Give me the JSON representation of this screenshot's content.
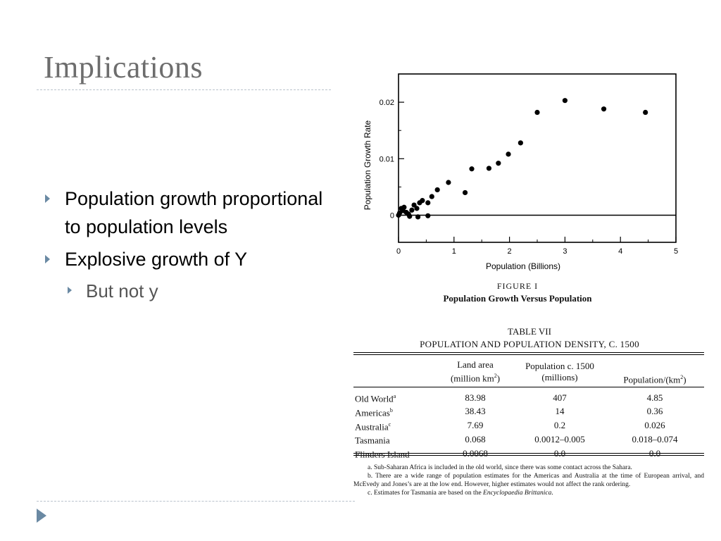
{
  "slide": {
    "title": "Implications",
    "bullets": [
      "Population growth proportional to population levels",
      "Explosive growth of Y"
    ],
    "subbullets": [
      "But not y"
    ],
    "accent_color": "#6a89a3"
  },
  "figure": {
    "number": "FIGURE I",
    "title": "Population Growth Versus Population"
  },
  "chart_data": {
    "type": "scatter",
    "xlabel": "Population (Billions)",
    "ylabel": "Population Growth Rate",
    "xlim": [
      0,
      5
    ],
    "ylim": [
      -0.0048,
      0.025
    ],
    "x_ticks": [
      0,
      1,
      2,
      3,
      4,
      5
    ],
    "y_ticks": [
      0,
      0.01,
      0.02
    ],
    "y_tick_labels": [
      "0",
      "0.01",
      "0.02"
    ],
    "zero_line": true,
    "points": [
      {
        "x": 0.0,
        "y": 0.0
      },
      {
        "x": 0.02,
        "y": 0.0004
      },
      {
        "x": 0.05,
        "y": 0.0012
      },
      {
        "x": 0.08,
        "y": 0.0008
      },
      {
        "x": 0.1,
        "y": 0.0014
      },
      {
        "x": 0.14,
        "y": 0.0005
      },
      {
        "x": 0.18,
        "y": 0.0002
      },
      {
        "x": 0.2,
        "y": -0.0002
      },
      {
        "x": 0.24,
        "y": 0.0009
      },
      {
        "x": 0.28,
        "y": 0.0018
      },
      {
        "x": 0.33,
        "y": 0.0012
      },
      {
        "x": 0.35,
        "y": -0.0003
      },
      {
        "x": 0.38,
        "y": 0.0022
      },
      {
        "x": 0.43,
        "y": 0.0026
      },
      {
        "x": 0.53,
        "y": 0.0022
      },
      {
        "x": 0.53,
        "y": -0.0001
      },
      {
        "x": 0.6,
        "y": 0.0033
      },
      {
        "x": 0.7,
        "y": 0.0045
      },
      {
        "x": 0.9,
        "y": 0.0058
      },
      {
        "x": 1.2,
        "y": 0.004
      },
      {
        "x": 1.32,
        "y": 0.0082
      },
      {
        "x": 1.63,
        "y": 0.0083
      },
      {
        "x": 1.8,
        "y": 0.0092
      },
      {
        "x": 1.98,
        "y": 0.0108
      },
      {
        "x": 2.2,
        "y": 0.0128
      },
      {
        "x": 2.5,
        "y": 0.0182
      },
      {
        "x": 3.0,
        "y": 0.0203
      },
      {
        "x": 3.7,
        "y": 0.0188
      },
      {
        "x": 4.45,
        "y": 0.0182
      }
    ]
  },
  "table": {
    "number": "TABLE VII",
    "title": "POPULATION AND POPULATION DENSITY, C. 1500",
    "headers": {
      "land_area": "Land area",
      "land_area_units": "(million km",
      "land_area_sup": "2",
      "land_area_close": ")",
      "population": "Population c. 1500",
      "population_units": "(millions)",
      "density": "Population/(km",
      "density_sup": "2",
      "density_close": ")"
    },
    "rows": [
      {
        "label": "Old World",
        "note": "a",
        "land": "83.98",
        "pop": "407",
        "density": "4.85"
      },
      {
        "label": "Americas",
        "note": "b",
        "land": "38.43",
        "pop": "14",
        "density": "0.36"
      },
      {
        "label": "Australia",
        "note": "c",
        "land": "7.69",
        "pop": "0.2",
        "density": "0.026"
      },
      {
        "label": "Tasmania",
        "note": "",
        "land": "0.068",
        "pop": "0.0012–0.005",
        "density": "0.018–0.074"
      },
      {
        "label": "Flinders Island",
        "note": "",
        "land": "0.0068",
        "pop": "0.0",
        "density": "0.0"
      }
    ],
    "footnotes": {
      "a": "a. Sub-Saharan Africa is included in the old world, since there was some contact across the Sahara.",
      "b": "b. There are a wide range of population estimates for the Americas and Australia at the time of European arrival, and McEvedy and Jones’s are at the low end. However, higher estimates would not affect the rank ordering.",
      "c_prefix": "c. Estimates for Tasmania are based on the ",
      "c_source": "Encyclopaedia Brittanica",
      "c_suffix": "."
    }
  }
}
